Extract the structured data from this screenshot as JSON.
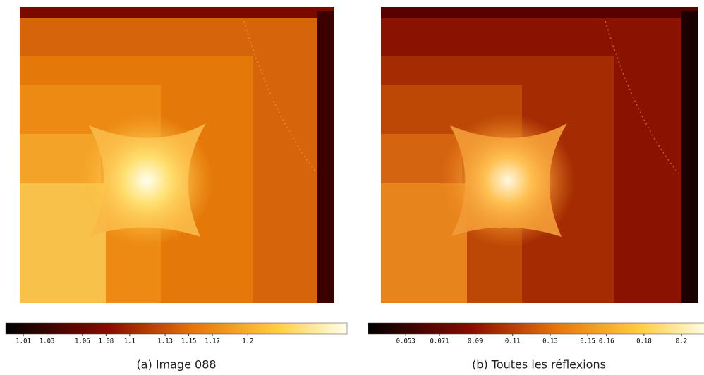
{
  "panels": [
    {
      "caption": "(a) Image 088",
      "colorbar": {
        "clim": [
          0.995,
          1.284
        ],
        "ticks": [
          1.01,
          1.03,
          1.06,
          1.08,
          1.1,
          1.13,
          1.15,
          1.17,
          1.2
        ]
      }
    },
    {
      "caption": "(b) Toutes les réflexions",
      "colorbar": {
        "clim": [
          0.033,
          0.215
        ],
        "ticks": [
          0.053,
          0.071,
          0.09,
          0.11,
          0.13,
          0.15,
          0.16,
          0.18,
          0.2
        ]
      }
    }
  ]
}
